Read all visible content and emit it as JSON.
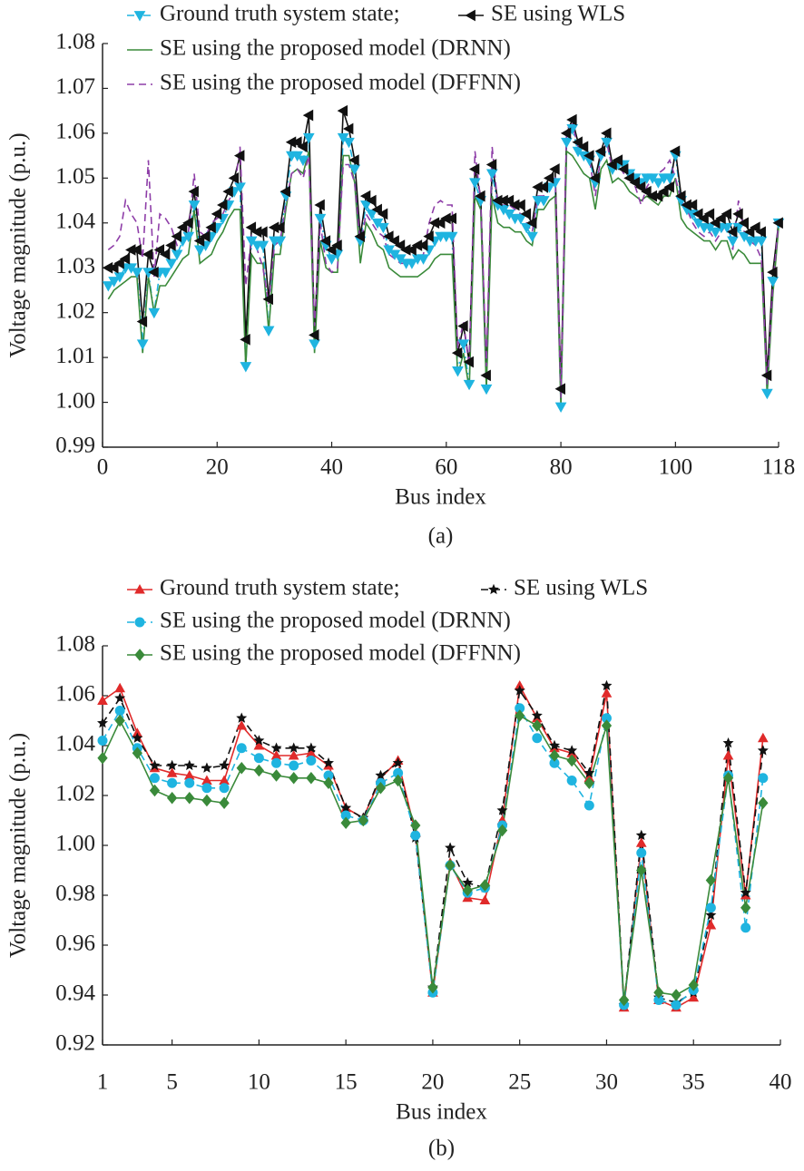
{
  "chart_data": [
    {
      "type": "line",
      "caption": "(a)",
      "xlabel": "Bus index",
      "ylabel": "Voltage magnitude (p.u.)",
      "xlim": [
        0,
        118
      ],
      "xticks": [
        0,
        20,
        40,
        60,
        80,
        100,
        118
      ],
      "ylim": [
        0.99,
        1.08
      ],
      "yticks": [
        0.99,
        {
          "value": 1,
          "label": "1.00"
        },
        1.01,
        1.02,
        1.03,
        1.04,
        1.05,
        1.06,
        1.07,
        1.08
      ],
      "x": [
        1,
        2,
        3,
        4,
        5,
        6,
        7,
        8,
        9,
        10,
        11,
        12,
        13,
        14,
        15,
        16,
        17,
        18,
        19,
        20,
        21,
        22,
        23,
        24,
        25,
        26,
        27,
        28,
        29,
        30,
        31,
        32,
        33,
        34,
        35,
        36,
        37,
        38,
        39,
        40,
        41,
        42,
        43,
        44,
        45,
        46,
        47,
        48,
        49,
        50,
        51,
        52,
        53,
        54,
        55,
        56,
        57,
        58,
        59,
        60,
        61,
        62,
        63,
        64,
        65,
        66,
        67,
        68,
        69,
        70,
        71,
        72,
        73,
        74,
        75,
        76,
        77,
        78,
        79,
        80,
        81,
        82,
        83,
        84,
        85,
        86,
        87,
        88,
        89,
        90,
        91,
        92,
        93,
        94,
        95,
        96,
        97,
        98,
        99,
        100,
        101,
        102,
        103,
        104,
        105,
        106,
        107,
        108,
        109,
        110,
        111,
        112,
        113,
        114,
        115,
        116,
        117,
        118
      ],
      "series": [
        {
          "name": "Ground truth system state;",
          "color": "#1fb4e0",
          "marker": "triangle-down",
          "linestyle": "dashdot",
          "values": [
            1.026,
            1.027,
            1.028,
            1.03,
            1.03,
            1.029,
            1.013,
            1.029,
            1.02,
            1.029,
            1.029,
            1.031,
            1.033,
            1.036,
            1.037,
            1.044,
            1.034,
            1.035,
            1.037,
            1.039,
            1.041,
            1.044,
            1.047,
            1.048,
            1.008,
            1.036,
            1.035,
            1.035,
            1.016,
            1.036,
            1.036,
            1.046,
            1.055,
            1.055,
            1.054,
            1.059,
            1.013,
            1.041,
            1.035,
            1.032,
            1.033,
            1.059,
            1.058,
            1.052,
            1.036,
            1.044,
            1.042,
            1.04,
            1.039,
            1.034,
            1.033,
            1.032,
            1.031,
            1.031,
            1.032,
            1.032,
            1.034,
            1.036,
            1.037,
            1.037,
            1.037,
            1.007,
            1.013,
            1.004,
            1.049,
            1.045,
            1.003,
            1.051,
            1.044,
            1.043,
            1.042,
            1.041,
            1.041,
            1.039,
            1.037,
            1.045,
            1.045,
            1.048,
            1.049,
            0.999,
            1.058,
            1.061,
            1.056,
            1.055,
            1.054,
            1.049,
            1.055,
            1.058,
            1.052,
            1.053,
            1.053,
            1.051,
            1.05,
            1.049,
            1.05,
            1.05,
            1.049,
            1.05,
            1.05,
            1.055,
            1.045,
            1.043,
            1.042,
            1.04,
            1.039,
            1.039,
            1.038,
            1.039,
            1.039,
            1.036,
            1.039,
            1.037,
            1.036,
            1.036,
            1.036,
            1.002,
            1.027,
            1.04
          ]
        },
        {
          "name": "SE using WLS",
          "color": "#111111",
          "marker": "triangle-left",
          "linestyle": "solid",
          "values": [
            1.03,
            1.03,
            1.031,
            1.032,
            1.034,
            1.034,
            1.018,
            1.033,
            1.029,
            1.034,
            1.033,
            1.035,
            1.037,
            1.039,
            1.04,
            1.047,
            1.036,
            1.037,
            1.039,
            1.042,
            1.044,
            1.047,
            1.05,
            1.055,
            1.014,
            1.039,
            1.038,
            1.038,
            1.023,
            1.039,
            1.039,
            1.047,
            1.058,
            1.058,
            1.057,
            1.064,
            1.015,
            1.044,
            1.036,
            1.034,
            1.035,
            1.065,
            1.061,
            1.054,
            1.037,
            1.046,
            1.045,
            1.043,
            1.042,
            1.037,
            1.036,
            1.035,
            1.034,
            1.034,
            1.035,
            1.035,
            1.037,
            1.04,
            1.04,
            1.041,
            1.041,
            1.011,
            1.017,
            1.009,
            1.052,
            1.046,
            1.006,
            1.053,
            1.045,
            1.045,
            1.045,
            1.044,
            1.044,
            1.042,
            1.04,
            1.048,
            1.048,
            1.05,
            1.052,
            1.003,
            1.06,
            1.063,
            1.058,
            1.057,
            1.055,
            1.05,
            1.056,
            1.06,
            1.053,
            1.054,
            1.052,
            1.05,
            1.049,
            1.048,
            1.047,
            1.046,
            1.046,
            1.047,
            1.048,
            1.056,
            1.046,
            1.044,
            1.044,
            1.042,
            1.041,
            1.042,
            1.04,
            1.041,
            1.042,
            1.038,
            1.042,
            1.04,
            1.038,
            1.039,
            1.038,
            1.006,
            1.029,
            1.04
          ]
        },
        {
          "name": "SE using the proposed model (DRNN)",
          "color": "#3a8a3a",
          "marker": "none",
          "linestyle": "solid",
          "values": [
            1.023,
            1.025,
            1.026,
            1.027,
            1.028,
            1.028,
            1.011,
            1.028,
            1.02,
            1.026,
            1.026,
            1.028,
            1.03,
            1.032,
            1.033,
            1.043,
            1.031,
            1.032,
            1.033,
            1.036,
            1.038,
            1.041,
            1.043,
            1.043,
            1.008,
            1.033,
            1.031,
            1.031,
            1.016,
            1.033,
            1.033,
            1.043,
            1.051,
            1.052,
            1.051,
            1.056,
            1.011,
            1.036,
            1.03,
            1.029,
            1.029,
            1.055,
            1.055,
            1.049,
            1.031,
            1.04,
            1.038,
            1.035,
            1.034,
            1.03,
            1.029,
            1.028,
            1.028,
            1.028,
            1.028,
            1.029,
            1.03,
            1.032,
            1.033,
            1.033,
            1.033,
            1.006,
            1.011,
            1.003,
            1.046,
            1.043,
            1.003,
            1.046,
            1.04,
            1.039,
            1.039,
            1.038,
            1.038,
            1.036,
            1.035,
            1.043,
            1.043,
            1.045,
            1.046,
            0.999,
            1.056,
            1.055,
            1.053,
            1.051,
            1.05,
            1.043,
            1.052,
            1.054,
            1.049,
            1.05,
            1.049,
            1.047,
            1.046,
            1.045,
            1.046,
            1.045,
            1.044,
            1.046,
            1.046,
            1.05,
            1.041,
            1.039,
            1.038,
            1.037,
            1.036,
            1.036,
            1.034,
            1.036,
            1.036,
            1.032,
            1.034,
            1.033,
            1.031,
            1.031,
            1.031,
            1.002,
            1.024,
            1.039
          ]
        },
        {
          "name": "SE using the proposed model (DFFNN)",
          "color": "#8e3ea8",
          "marker": "none",
          "linestyle": "dashed",
          "values": [
            1.034,
            1.035,
            1.037,
            1.045,
            1.042,
            1.04,
            1.032,
            1.054,
            1.028,
            1.042,
            1.041,
            1.039,
            1.035,
            1.036,
            1.038,
            1.051,
            1.038,
            1.037,
            1.04,
            1.041,
            1.042,
            1.045,
            1.047,
            1.057,
            1.026,
            1.037,
            1.034,
            1.03,
            1.022,
            1.035,
            1.036,
            1.044,
            1.051,
            1.052,
            1.05,
            1.055,
            1.017,
            1.04,
            1.031,
            1.029,
            1.03,
            1.053,
            1.053,
            1.049,
            1.035,
            1.042,
            1.04,
            1.038,
            1.037,
            1.033,
            1.032,
            1.031,
            1.031,
            1.031,
            1.032,
            1.033,
            1.04,
            1.044,
            1.045,
            1.044,
            1.044,
            1.012,
            1.018,
            1.008,
            1.056,
            1.045,
            1.008,
            1.057,
            1.044,
            1.044,
            1.044,
            1.043,
            1.042,
            1.04,
            1.038,
            1.046,
            1.046,
            1.049,
            1.05,
            1.001,
            1.061,
            1.062,
            1.057,
            1.055,
            1.054,
            1.046,
            1.055,
            1.058,
            1.052,
            1.053,
            1.051,
            1.05,
            1.048,
            1.044,
            1.048,
            1.05,
            1.051,
            1.052,
            1.054,
            1.05,
            1.045,
            1.043,
            1.04,
            1.038,
            1.037,
            1.038,
            1.036,
            1.038,
            1.04,
            1.034,
            1.045,
            1.038,
            1.036,
            1.035,
            1.032,
            1.004,
            1.026,
            1.04
          ]
        }
      ]
    },
    {
      "type": "line",
      "caption": "(b)",
      "xlabel": "Bus index",
      "ylabel": "Voltage magnitude (p.u.)",
      "xlim": [
        1,
        40
      ],
      "xticks": [
        1,
        5,
        10,
        15,
        20,
        25,
        30,
        35,
        40
      ],
      "ylim": [
        0.92,
        1.08
      ],
      "yticks": [
        0.92,
        0.94,
        0.96,
        0.98,
        {
          "value": 1,
          "label": "1.00"
        },
        1.02,
        1.04,
        1.06,
        1.08
      ],
      "x": [
        1,
        2,
        3,
        4,
        5,
        6,
        7,
        8,
        9,
        10,
        11,
        12,
        13,
        14,
        15,
        16,
        17,
        18,
        19,
        20,
        21,
        22,
        23,
        24,
        25,
        26,
        27,
        28,
        29,
        30,
        31,
        32,
        33,
        34,
        35,
        36,
        37,
        38,
        39
      ],
      "series": [
        {
          "name": "Ground truth system state;",
          "color": "#e02a2a",
          "marker": "triangle-up",
          "linestyle": "solid",
          "values": [
            1.058,
            1.063,
            1.045,
            1.031,
            1.029,
            1.028,
            1.026,
            1.026,
            1.048,
            1.04,
            1.036,
            1.036,
            1.037,
            1.032,
            1.015,
            1.011,
            1.027,
            1.034,
            1.005,
            0.941,
            0.993,
            0.979,
            0.978,
            1.01,
            1.064,
            1.051,
            1.039,
            1.037,
            1.027,
            1.061,
            0.935,
            1.001,
            0.938,
            0.935,
            0.939,
            0.968,
            1.036,
            0.98,
            1.043
          ]
        },
        {
          "name": "SE using WLS",
          "color": "#111111",
          "marker": "star",
          "linestyle": "dashed",
          "values": [
            1.049,
            1.059,
            1.043,
            1.032,
            1.032,
            1.032,
            1.031,
            1.032,
            1.051,
            1.042,
            1.039,
            1.039,
            1.039,
            1.033,
            1.015,
            1.011,
            1.028,
            1.033,
            1.003,
            0.943,
            0.999,
            0.985,
            0.983,
            1.014,
            1.062,
            1.052,
            1.04,
            1.038,
            1.029,
            1.064,
            0.936,
            1.004,
            0.939,
            0.937,
            0.941,
            0.972,
            1.041,
            0.981,
            1.038
          ]
        },
        {
          "name": "SE using the proposed model (DRNN)",
          "color": "#1fb4e0",
          "marker": "circle",
          "linestyle": "dashed",
          "values": [
            1.042,
            1.054,
            1.039,
            1.027,
            1.025,
            1.025,
            1.023,
            1.023,
            1.039,
            1.035,
            1.033,
            1.032,
            1.034,
            1.028,
            1.012,
            1.01,
            1.025,
            1.029,
            1.004,
            0.941,
            0.992,
            0.981,
            0.983,
            1.008,
            1.055,
            1.043,
            1.033,
            1.026,
            1.016,
            1.051,
            0.936,
            0.997,
            0.938,
            0.936,
            0.942,
            0.975,
            1.028,
            0.967,
            1.027
          ]
        },
        {
          "name": "SE using the proposed model (DFFNN)",
          "color": "#3a8a3a",
          "marker": "diamond",
          "linestyle": "solid",
          "values": [
            1.035,
            1.05,
            1.037,
            1.022,
            1.019,
            1.019,
            1.018,
            1.017,
            1.031,
            1.03,
            1.028,
            1.027,
            1.027,
            1.025,
            1.009,
            1.01,
            1.023,
            1.026,
            1.008,
            0.943,
            0.992,
            0.982,
            0.984,
            1.006,
            1.052,
            1.048,
            1.036,
            1.034,
            1.025,
            1.048,
            0.938,
            0.99,
            0.941,
            0.94,
            0.944,
            0.986,
            1.027,
            0.975,
            1.017
          ]
        }
      ]
    }
  ]
}
